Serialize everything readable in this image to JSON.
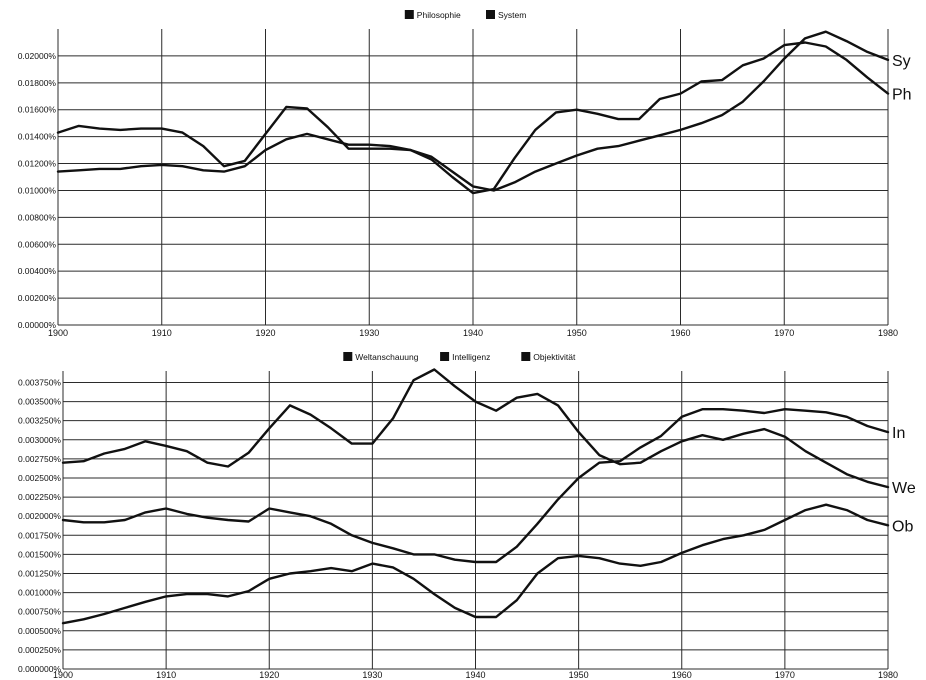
{
  "chart_data": [
    {
      "type": "line",
      "title": "",
      "xlabel": "",
      "ylabel": "",
      "xlim": [
        1900,
        1980
      ],
      "ylim": [
        0,
        0.022
      ],
      "grid": true,
      "legend": "top-center",
      "x_ticks": [
        "1900",
        "1910",
        "1920",
        "1930",
        "1940",
        "1950",
        "1960",
        "1970",
        "1980"
      ],
      "y_ticks": [
        {
          "value": 0.0,
          "label": "0.00000%"
        },
        {
          "value": 0.002,
          "label": "0.00200%"
        },
        {
          "value": 0.004,
          "label": "0.00400%"
        },
        {
          "value": 0.006,
          "label": "0.00600%"
        },
        {
          "value": 0.008,
          "label": "0.00800%"
        },
        {
          "value": 0.01,
          "label": "0.01000%"
        },
        {
          "value": 0.012,
          "label": "0.01200%"
        },
        {
          "value": 0.014,
          "label": "0.01400%"
        },
        {
          "value": 0.016,
          "label": "0.01600%"
        },
        {
          "value": 0.018,
          "label": "0.01800%"
        },
        {
          "value": 0.02,
          "label": "0.02000%"
        }
      ],
      "series": [
        {
          "name": "Philosophie",
          "end_label": "Ph",
          "color": "#111111",
          "x": [
            1900,
            1902,
            1904,
            1906,
            1908,
            1910,
            1912,
            1914,
            1916,
            1918,
            1920,
            1922,
            1924,
            1926,
            1928,
            1930,
            1932,
            1934,
            1936,
            1938,
            1940,
            1942,
            1944,
            1946,
            1948,
            1950,
            1952,
            1954,
            1956,
            1958,
            1960,
            1962,
            1964,
            1966,
            1968,
            1970,
            1972,
            1974,
            1976,
            1978,
            1980
          ],
          "values": [
            0.0143,
            0.0148,
            0.0146,
            0.0145,
            0.0146,
            0.0146,
            0.0143,
            0.0133,
            0.0118,
            0.0122,
            0.0142,
            0.0162,
            0.0161,
            0.0147,
            0.0131,
            0.0131,
            0.0131,
            0.013,
            0.0123,
            0.011,
            0.0098,
            0.0101,
            0.0124,
            0.0145,
            0.0158,
            0.016,
            0.0157,
            0.0153,
            0.0153,
            0.0168,
            0.0172,
            0.0181,
            0.0182,
            0.0193,
            0.0198,
            0.0208,
            0.021,
            0.0207,
            0.0197,
            0.0184,
            0.0172
          ]
        },
        {
          "name": "System",
          "end_label": "Sy",
          "color": "#111111",
          "x": [
            1900,
            1902,
            1904,
            1906,
            1908,
            1910,
            1912,
            1914,
            1916,
            1918,
            1920,
            1922,
            1924,
            1926,
            1928,
            1930,
            1932,
            1934,
            1936,
            1938,
            1940,
            1942,
            1944,
            1946,
            1948,
            1950,
            1952,
            1954,
            1956,
            1958,
            1960,
            1962,
            1964,
            1966,
            1968,
            1970,
            1972,
            1974,
            1976,
            1978,
            1980
          ],
          "values": [
            0.0114,
            0.0115,
            0.0116,
            0.0116,
            0.0118,
            0.0119,
            0.0118,
            0.0115,
            0.0114,
            0.0118,
            0.013,
            0.0138,
            0.0142,
            0.0138,
            0.0134,
            0.0134,
            0.0133,
            0.013,
            0.0125,
            0.0114,
            0.0103,
            0.01,
            0.0106,
            0.0114,
            0.012,
            0.0126,
            0.0131,
            0.0133,
            0.0137,
            0.0141,
            0.0145,
            0.015,
            0.0156,
            0.0166,
            0.0181,
            0.0198,
            0.0213,
            0.0218,
            0.0211,
            0.0203,
            0.0197
          ]
        }
      ]
    },
    {
      "type": "line",
      "title": "",
      "xlabel": "",
      "ylabel": "",
      "xlim": [
        1900,
        1980
      ],
      "ylim": [
        0,
        0.0039
      ],
      "grid": true,
      "legend": "top-center",
      "x_ticks": [
        "1900",
        "1910",
        "1920",
        "1930",
        "1940",
        "1950",
        "1960",
        "1970",
        "1980"
      ],
      "y_ticks": [
        {
          "value": 0.0,
          "label": "0.000000%"
        },
        {
          "value": 0.00025,
          "label": "0.000250%"
        },
        {
          "value": 0.0005,
          "label": "0.000500%"
        },
        {
          "value": 0.00075,
          "label": "0.000750%"
        },
        {
          "value": 0.001,
          "label": "0.001000%"
        },
        {
          "value": 0.00125,
          "label": "0.001250%"
        },
        {
          "value": 0.0015,
          "label": "0.001500%"
        },
        {
          "value": 0.00175,
          "label": "0.001750%"
        },
        {
          "value": 0.002,
          "label": "0.002000%"
        },
        {
          "value": 0.00225,
          "label": "0.002250%"
        },
        {
          "value": 0.0025,
          "label": "0.002500%"
        },
        {
          "value": 0.00275,
          "label": "0.002750%"
        },
        {
          "value": 0.003,
          "label": "0.003000%"
        },
        {
          "value": 0.00325,
          "label": "0.003250%"
        },
        {
          "value": 0.0035,
          "label": "0.003500%"
        },
        {
          "value": 0.00375,
          "label": "0.003750%"
        }
      ],
      "series": [
        {
          "name": "Weltanschauung",
          "end_label": "We",
          "color": "#111111",
          "x": [
            1900,
            1902,
            1904,
            1906,
            1908,
            1910,
            1912,
            1914,
            1916,
            1918,
            1920,
            1922,
            1924,
            1926,
            1928,
            1930,
            1932,
            1934,
            1936,
            1938,
            1940,
            1942,
            1944,
            1946,
            1948,
            1950,
            1952,
            1954,
            1956,
            1958,
            1960,
            1962,
            1964,
            1966,
            1968,
            1970,
            1972,
            1974,
            1976,
            1978,
            1980
          ],
          "values": [
            0.0027,
            0.00272,
            0.00282,
            0.00288,
            0.00298,
            0.00292,
            0.00285,
            0.0027,
            0.00265,
            0.00283,
            0.00315,
            0.00345,
            0.00333,
            0.00315,
            0.00295,
            0.00295,
            0.00328,
            0.00378,
            0.00392,
            0.0037,
            0.0035,
            0.00338,
            0.00355,
            0.0036,
            0.00345,
            0.0031,
            0.0028,
            0.00268,
            0.0027,
            0.00285,
            0.00298,
            0.00306,
            0.003,
            0.00308,
            0.00314,
            0.00304,
            0.00285,
            0.0027,
            0.00255,
            0.00245,
            0.00238
          ]
        },
        {
          "name": "Intelligenz",
          "end_label": "In",
          "color": "#111111",
          "x": [
            1900,
            1902,
            1904,
            1906,
            1908,
            1910,
            1912,
            1914,
            1916,
            1918,
            1920,
            1922,
            1924,
            1926,
            1928,
            1930,
            1932,
            1934,
            1936,
            1938,
            1940,
            1942,
            1944,
            1946,
            1948,
            1950,
            1952,
            1954,
            1956,
            1958,
            1960,
            1962,
            1964,
            1966,
            1968,
            1970,
            1972,
            1974,
            1976,
            1978,
            1980
          ],
          "values": [
            0.00195,
            0.00192,
            0.00192,
            0.00195,
            0.00205,
            0.0021,
            0.00203,
            0.00198,
            0.00195,
            0.00193,
            0.0021,
            0.00205,
            0.002,
            0.0019,
            0.00175,
            0.00165,
            0.00158,
            0.0015,
            0.0015,
            0.00143,
            0.0014,
            0.0014,
            0.0016,
            0.0019,
            0.00222,
            0.0025,
            0.0027,
            0.00272,
            0.0029,
            0.00305,
            0.0033,
            0.0034,
            0.0034,
            0.00338,
            0.00335,
            0.0034,
            0.00338,
            0.00336,
            0.0033,
            0.00318,
            0.0031
          ]
        },
        {
          "name": "Objektivität",
          "end_label": "Ob",
          "color": "#111111",
          "x": [
            1900,
            1902,
            1904,
            1906,
            1908,
            1910,
            1912,
            1914,
            1916,
            1918,
            1920,
            1922,
            1924,
            1926,
            1928,
            1930,
            1932,
            1934,
            1936,
            1938,
            1940,
            1942,
            1944,
            1946,
            1948,
            1950,
            1952,
            1954,
            1956,
            1958,
            1960,
            1962,
            1964,
            1966,
            1968,
            1970,
            1972,
            1974,
            1976,
            1978,
            1980
          ],
          "values": [
            0.0006,
            0.00065,
            0.00072,
            0.0008,
            0.00088,
            0.00095,
            0.00098,
            0.00098,
            0.00095,
            0.00102,
            0.00118,
            0.00125,
            0.00128,
            0.00132,
            0.00128,
            0.00138,
            0.00133,
            0.00118,
            0.00098,
            0.0008,
            0.00068,
            0.00068,
            0.0009,
            0.00125,
            0.00145,
            0.00148,
            0.00145,
            0.00138,
            0.00135,
            0.0014,
            0.00152,
            0.00162,
            0.0017,
            0.00175,
            0.00182,
            0.00195,
            0.00208,
            0.00215,
            0.00208,
            0.00195,
            0.00188
          ]
        }
      ]
    }
  ]
}
